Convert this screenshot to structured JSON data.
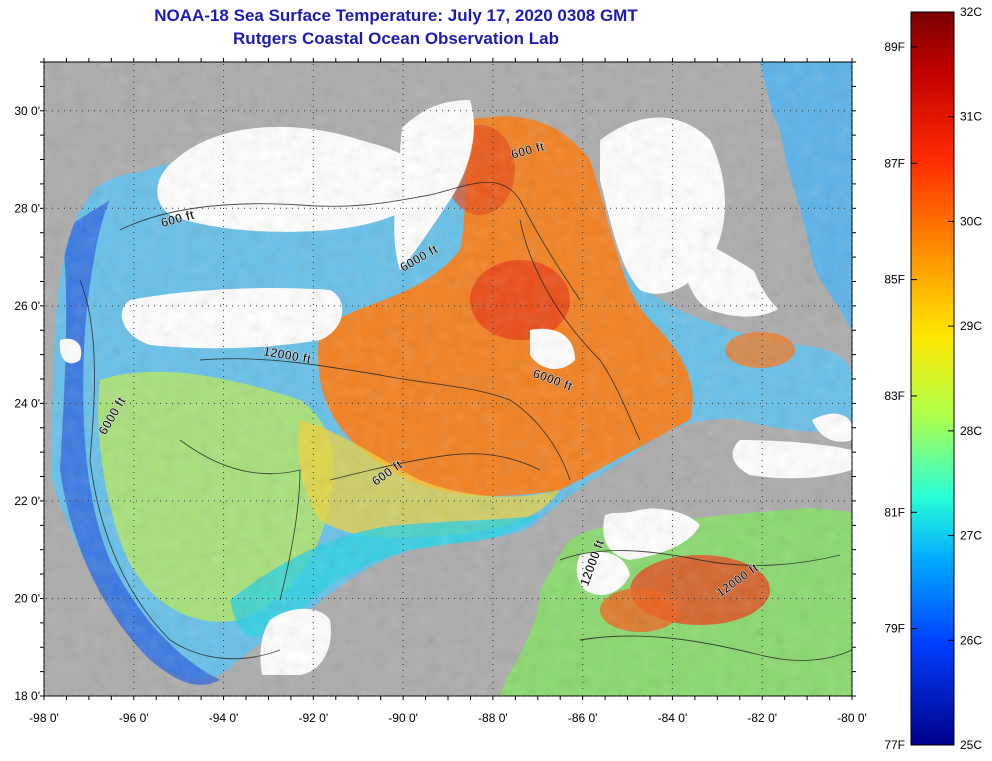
{
  "title": {
    "line1": "NOAA-18 Sea Surface Temperature:  July 17, 2020 0308 GMT",
    "line2": "Rutgers Coastal Ocean Observation Lab"
  },
  "map": {
    "lat_labels": [
      "30 0'",
      "28 0'",
      "26 0'",
      "24 0'",
      "22 0'",
      "20 0'",
      "18 0'"
    ],
    "lon_labels": [
      "-98 0'",
      "-96 0'",
      "-94 0'",
      "-92 0'",
      "-90 0'",
      "-88 0'",
      "-86 0'",
      "-84 0'",
      "-82 0'",
      "-80 0'"
    ],
    "lat_range": [
      18,
      31
    ],
    "lon_range": [
      -98,
      -80
    ],
    "contour_labels": [
      {
        "text": "600 ft",
        "lon": -87.2,
        "lat": 29.1,
        "angle": -15
      },
      {
        "text": "600 ft",
        "lon": -95.0,
        "lat": 27.7,
        "angle": -15
      },
      {
        "text": "6000 ft",
        "lon": -89.6,
        "lat": 26.9,
        "angle": -30
      },
      {
        "text": "12000 ft",
        "lon": -92.6,
        "lat": 24.9,
        "angle": 10
      },
      {
        "text": "6000 ft",
        "lon": -86.7,
        "lat": 24.4,
        "angle": 20
      },
      {
        "text": "6000 ft",
        "lon": -96.4,
        "lat": 23.7,
        "angle": -60
      },
      {
        "text": "600 ft",
        "lon": -90.3,
        "lat": 22.5,
        "angle": -35
      },
      {
        "text": "12000 ft",
        "lon": -85.7,
        "lat": 20.7,
        "angle": -70
      },
      {
        "text": "12000 ft",
        "lon": -82.5,
        "lat": 20.3,
        "angle": -35
      }
    ],
    "colors": {
      "land": "#ababab",
      "cloud": "#ffffff",
      "warm": "#f07818",
      "mid": "#7fe27a",
      "cool": "#1e4adc"
    }
  },
  "colorbar": {
    "celsius_labels": [
      "32C",
      "31C",
      "30C",
      "29C",
      "28C",
      "27C",
      "26C",
      "25C"
    ],
    "fahrenheit_labels": [
      "89F",
      "87F",
      "85F",
      "83F",
      "81F",
      "79F",
      "77F"
    ],
    "range_c": [
      25,
      32
    ]
  }
}
